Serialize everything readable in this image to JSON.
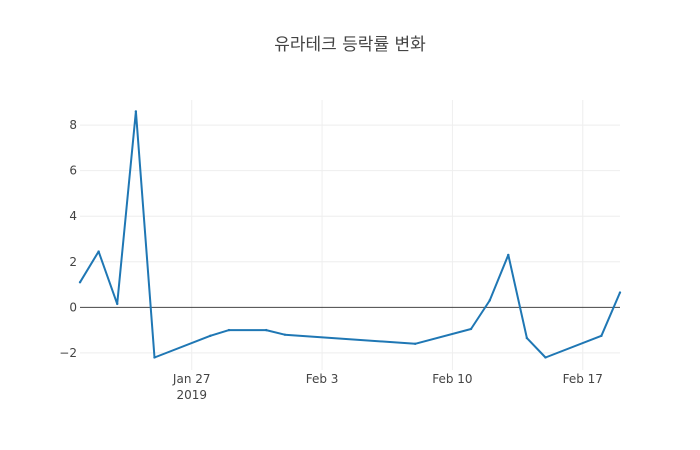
{
  "chart_data": {
    "type": "line",
    "title": "유라테크 등락률 변화",
    "xlabel": "",
    "ylabel": "",
    "x_range": [
      "2019-01-21",
      "2019-02-19"
    ],
    "ylim": [
      -2.75,
      9.1
    ],
    "grid": true,
    "legend": "none",
    "colors": {
      "series": "#1f77b4",
      "zero_line": "#444444",
      "grid": "#eeeeee"
    },
    "x_ticks": [
      {
        "date": "2019-01-27",
        "label": "Jan 27",
        "sublabel": "2019"
      },
      {
        "date": "2019-02-03",
        "label": "Feb 3",
        "sublabel": ""
      },
      {
        "date": "2019-02-10",
        "label": "Feb 10",
        "sublabel": ""
      },
      {
        "date": "2019-02-17",
        "label": "Feb 17",
        "sublabel": ""
      }
    ],
    "y_ticks": [
      -2,
      0,
      2,
      4,
      6,
      8
    ],
    "series": [
      {
        "name": "",
        "x": [
          "2019-01-21",
          "2019-01-22",
          "2019-01-23",
          "2019-01-24",
          "2019-01-25",
          "2019-01-28",
          "2019-01-29",
          "2019-01-31",
          "2019-02-01",
          "2019-02-08",
          "2019-02-11",
          "2019-02-12",
          "2019-02-13",
          "2019-02-14",
          "2019-02-15",
          "2019-02-18",
          "2019-02-19"
        ],
        "y": [
          1.1,
          2.45,
          0.15,
          8.6,
          -2.2,
          -1.25,
          -1.0,
          -1.0,
          -1.2,
          -1.6,
          -0.95,
          0.3,
          2.3,
          -1.35,
          -2.2,
          -1.25,
          0.65
        ]
      }
    ]
  }
}
